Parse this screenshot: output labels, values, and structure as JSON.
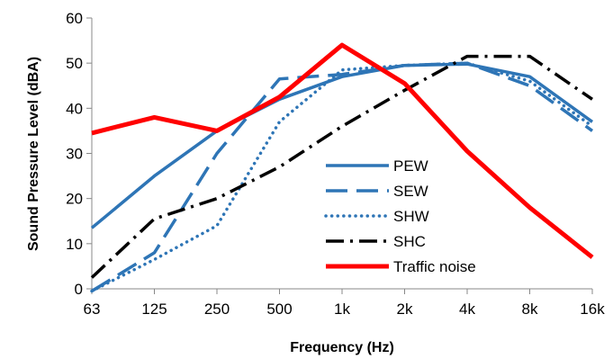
{
  "chart_data": {
    "type": "line",
    "title": "",
    "xlabel": "Frequency (Hz)",
    "ylabel": "Sound Pressure Level (dBA)",
    "ylim": [
      0,
      60
    ],
    "yticks": [
      "0",
      "10",
      "20",
      "30",
      "40",
      "50",
      "60"
    ],
    "categories": [
      "63",
      "125",
      "250",
      "500",
      "1k",
      "2k",
      "4k",
      "8k",
      "16k"
    ],
    "grid": false,
    "legend_position": "center-right",
    "series": [
      {
        "name": "PEW",
        "color": "#2E75B6",
        "style": "solid",
        "values": [
          13.5,
          25,
          35,
          42,
          47,
          49.5,
          49.8,
          47,
          37
        ]
      },
      {
        "name": "SEW",
        "color": "#2E75B6",
        "style": "dashed",
        "values": [
          -0.5,
          8,
          30,
          46.5,
          47.5,
          49.5,
          50,
          45,
          35
        ]
      },
      {
        "name": "SHW",
        "color": "#2E75B6",
        "style": "dotted",
        "values": [
          -0.5,
          6.5,
          14,
          37,
          48.5,
          49.5,
          50,
          46,
          36
        ]
      },
      {
        "name": "SHC",
        "color": "#000000",
        "style": "dashdot",
        "values": [
          2.5,
          15.5,
          20,
          27,
          36,
          44,
          51.5,
          51.5,
          42
        ]
      },
      {
        "name": "Traffic noise",
        "color": "#FF0000",
        "style": "solid-thick",
        "values": [
          34.5,
          38,
          35,
          42.5,
          54,
          45.5,
          30.5,
          18,
          7
        ]
      }
    ]
  }
}
